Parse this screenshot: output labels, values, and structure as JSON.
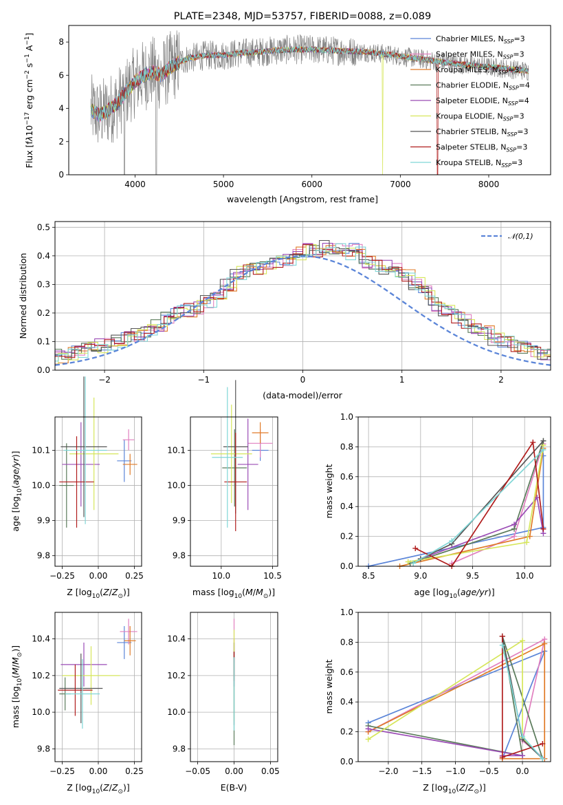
{
  "chart_data": [
    {
      "id": "spectrum",
      "type": "line",
      "title": "PLATE=2348, MJD=53757, FIBERID=0088, z=0.089",
      "xlabel": "wavelength [Angstrom, rest frame]",
      "ylabel": "Flux [f_λ 10^-17 erg cm^-2 s^-1 A^-1]",
      "xlim": [
        3250,
        8700
      ],
      "ylim": [
        0,
        9
      ],
      "xticks": [
        4000,
        5000,
        6000,
        7000,
        8000
      ],
      "yticks": [
        0,
        2,
        4,
        6,
        8
      ],
      "grid": false,
      "legend_position": "top-right",
      "data_wavelength_range": [
        3500,
        8450
      ],
      "data_color": "#808080",
      "continuum_points": [
        [
          3500,
          3.9
        ],
        [
          3600,
          3.6
        ],
        [
          3700,
          3.9
        ],
        [
          3800,
          4.3
        ],
        [
          3900,
          5.0
        ],
        [
          4000,
          5.6
        ],
        [
          4100,
          6.0
        ],
        [
          4200,
          6.2
        ],
        [
          4300,
          6.0
        ],
        [
          4400,
          6.5
        ],
        [
          4500,
          6.8
        ],
        [
          4600,
          7.0
        ],
        [
          4700,
          7.1
        ],
        [
          4800,
          7.2
        ],
        [
          4900,
          7.2
        ],
        [
          5000,
          7.2
        ],
        [
          5200,
          7.35
        ],
        [
          5400,
          7.4
        ],
        [
          5600,
          7.5
        ],
        [
          5800,
          7.55
        ],
        [
          6000,
          7.55
        ],
        [
          6200,
          7.5
        ],
        [
          6400,
          7.45
        ],
        [
          6600,
          7.4
        ],
        [
          6800,
          7.3
        ],
        [
          7000,
          7.15
        ],
        [
          7200,
          7.0
        ],
        [
          7400,
          6.85
        ],
        [
          7600,
          6.7
        ],
        [
          7800,
          6.6
        ],
        [
          8000,
          6.5
        ],
        [
          8200,
          6.4
        ],
        [
          8450,
          6.25
        ]
      ],
      "series": [
        {
          "name": "Chabrier MILES, N_SSP=3",
          "color": "#5b85d8"
        },
        {
          "name": "Salpeter MILES, N_SSP=3",
          "color": "#e17fbf"
        },
        {
          "name": "Kroupa MILES, N_SSP=3",
          "color": "#e07b27"
        },
        {
          "name": "Chabrier ELODIE, N_SSP=4",
          "color": "#5a7a5a"
        },
        {
          "name": "Salpeter ELODIE, N_SSP=4",
          "color": "#9a4bb5"
        },
        {
          "name": "Kroupa ELODIE, N_SSP=3",
          "color": "#d6e65a"
        },
        {
          "name": "Chabrier STELIB, N_SSP=3",
          "color": "#555555"
        },
        {
          "name": "Salpeter STELIB, N_SSP=3",
          "color": "#b01c1c"
        },
        {
          "name": "Kroupa STELIB, N_SSP=3",
          "color": "#7fd6d6"
        }
      ]
    },
    {
      "id": "residuals",
      "type": "histogram",
      "xlabel": "(data-model)/error",
      "ylabel": "Normed distribution",
      "xlim": [
        -2.5,
        2.5
      ],
      "ylim": [
        0,
        0.52
      ],
      "xticks": [
        -2,
        -1,
        0,
        1,
        2
      ],
      "yticks": [
        0.0,
        0.1,
        0.2,
        0.3,
        0.4,
        0.5
      ],
      "grid": true,
      "legend_position": "top-right",
      "gaussian_label": "𝒩(0,1)",
      "gaussian_color": "#5b85d8",
      "bin_width": 0.1,
      "base_values": [
        0.03,
        0.03,
        0.035,
        0.04,
        0.05,
        0.055,
        0.065,
        0.075,
        0.085,
        0.095,
        0.1,
        0.115,
        0.125,
        0.14,
        0.16,
        0.18,
        0.2,
        0.21,
        0.22,
        0.24,
        0.27,
        0.3,
        0.34,
        0.35,
        0.36,
        0.37,
        0.38,
        0.39,
        0.41,
        0.42,
        0.42,
        0.43,
        0.42,
        0.41,
        0.42,
        0.38,
        0.37,
        0.36,
        0.35,
        0.33,
        0.3,
        0.27,
        0.23,
        0.21,
        0.19,
        0.17,
        0.15,
        0.13,
        0.11,
        0.1,
        0.09,
        0.08,
        0.07,
        0.06,
        0.05,
        0.04,
        0.035,
        0.03
      ]
    },
    {
      "id": "age_vs_Z",
      "type": "errorbar",
      "xlabel": "Z [log10(Z/Z⊙)]",
      "ylabel": "age [log10(age/yr)]",
      "xlim": [
        -0.3,
        0.3
      ],
      "ylim": [
        9.77,
        10.195
      ],
      "xticks": [
        -0.25,
        0.0,
        0.25
      ],
      "yticks": [
        9.8,
        9.9,
        10.0,
        10.1
      ],
      "grid": true,
      "points": [
        {
          "x": 0.18,
          "y": 10.07,
          "xerr": 0.05,
          "yerr": 0.06,
          "color": "#5b85d8"
        },
        {
          "x": 0.21,
          "y": 10.13,
          "xerr": 0.04,
          "yerr": 0.03,
          "color": "#e17fbf"
        },
        {
          "x": 0.22,
          "y": 10.06,
          "xerr": 0.05,
          "yerr": 0.03,
          "color": "#e07b27"
        },
        {
          "x": -0.22,
          "y": 10.0,
          "xerr": 0.05,
          "yerr": 0.12,
          "color": "#5a7a5a"
        },
        {
          "x": -0.12,
          "y": 10.06,
          "xerr": 0.13,
          "yerr": 0.12,
          "color": "#9a4bb5"
        },
        {
          "x": -0.03,
          "y": 10.09,
          "xerr": 0.17,
          "yerr": 0.16,
          "color": "#d6e65a"
        },
        {
          "x": -0.1,
          "y": 10.11,
          "xerr": 0.16,
          "yerr": 0.2,
          "color": "#555555"
        },
        {
          "x": -0.15,
          "y": 10.01,
          "xerr": 0.12,
          "yerr": 0.13,
          "color": "#b01c1c"
        },
        {
          "x": -0.09,
          "y": 10.1,
          "xerr": 0.15,
          "yerr": 0.21,
          "color": "#7fd6d6"
        }
      ]
    },
    {
      "id": "age_vs_mass",
      "type": "errorbar",
      "xlabel": "mass [log10(M/M⊙)]",
      "ylabel": "",
      "xlim": [
        9.7,
        10.55
      ],
      "ylim": [
        9.77,
        10.195
      ],
      "xticks": [
        10.0,
        10.5
      ],
      "yticks": [
        9.8,
        9.9,
        10.0,
        10.1
      ],
      "grid": true,
      "points": [
        {
          "x": 10.38,
          "y": 10.1,
          "xerr": 0.08,
          "yerr": 0.03,
          "color": "#5b85d8"
        },
        {
          "x": 10.38,
          "y": 10.12,
          "xerr": 0.12,
          "yerr": 0.04,
          "color": "#e17fbf"
        },
        {
          "x": 10.38,
          "y": 10.15,
          "xerr": 0.08,
          "yerr": 0.03,
          "color": "#e07b27"
        },
        {
          "x": 10.13,
          "y": 10.05,
          "xerr": 0.12,
          "yerr": 0.11,
          "color": "#5a7a5a"
        },
        {
          "x": 10.26,
          "y": 10.06,
          "xerr": 0.1,
          "yerr": 0.13,
          "color": "#9a4bb5"
        },
        {
          "x": 10.1,
          "y": 10.09,
          "xerr": 0.2,
          "yerr": 0.14,
          "color": "#d6e65a"
        },
        {
          "x": 10.14,
          "y": 10.11,
          "xerr": 0.12,
          "yerr": 0.19,
          "color": "#555555"
        },
        {
          "x": 10.14,
          "y": 10.01,
          "xerr": 0.11,
          "yerr": 0.14,
          "color": "#b01c1c"
        },
        {
          "x": 10.06,
          "y": 10.08,
          "xerr": 0.15,
          "yerr": 0.2,
          "color": "#7fd6d6"
        }
      ]
    },
    {
      "id": "weight_vs_age",
      "type": "line",
      "xlabel": "age [log10(age/yr)]",
      "ylabel": "mass weight",
      "xlim": [
        8.4,
        10.25
      ],
      "ylim": [
        0,
        1.0
      ],
      "xticks": [
        8.5,
        9.0,
        9.5,
        10.0
      ],
      "yticks": [
        0.0,
        0.2,
        0.4,
        0.6,
        0.8,
        1.0
      ],
      "grid": true,
      "series": [
        {
          "color": "#5b85d8",
          "x": [
            8.5,
            10.18,
            10.18
          ],
          "y": [
            0.0,
            0.26,
            0.74
          ]
        },
        {
          "color": "#e17fbf",
          "x": [
            9.3,
            9.9,
            10.18
          ],
          "y": [
            0.02,
            0.2,
            0.82
          ]
        },
        {
          "color": "#e07b27",
          "x": [
            8.8,
            10.05,
            10.18
          ],
          "y": [
            0.0,
            0.2,
            0.79
          ]
        },
        {
          "color": "#5a7a5a",
          "x": [
            8.9,
            9.9,
            10.18
          ],
          "y": [
            0.02,
            0.25,
            0.84
          ]
        },
        {
          "color": "#9a4bb5",
          "x": [
            9.0,
            9.9,
            10.12,
            10.18
          ],
          "y": [
            0.05,
            0.28,
            0.46,
            0.22
          ]
        },
        {
          "color": "#d6e65a",
          "x": [
            8.88,
            10.02,
            10.18
          ],
          "y": [
            0.03,
            0.16,
            0.81
          ]
        },
        {
          "color": "#555555",
          "x": [
            9.0,
            9.3,
            10.18
          ],
          "y": [
            0.05,
            0.15,
            0.84
          ]
        },
        {
          "color": "#b01c1c",
          "x": [
            8.95,
            9.3,
            10.08,
            10.18
          ],
          "y": [
            0.12,
            0.0,
            0.83,
            0.25
          ]
        },
        {
          "color": "#7fd6d6",
          "x": [
            8.93,
            9.3,
            10.18
          ],
          "y": [
            0.02,
            0.17,
            0.78
          ]
        }
      ]
    },
    {
      "id": "mass_vs_Z",
      "type": "errorbar",
      "xlabel": "Z [log10(Z/Z⊙)]",
      "ylabel": "mass [log10(M/M⊙)]",
      "xlim": [
        -0.3,
        0.3
      ],
      "ylim": [
        9.73,
        10.545
      ],
      "xticks": [
        -0.25,
        0.0,
        0.25
      ],
      "yticks": [
        9.8,
        10.0,
        10.2,
        10.4
      ],
      "grid": true,
      "points": [
        {
          "x": 0.18,
          "y": 10.38,
          "xerr": 0.05,
          "yerr": 0.09,
          "color": "#5b85d8"
        },
        {
          "x": 0.21,
          "y": 10.44,
          "xerr": 0.06,
          "yerr": 0.07,
          "color": "#e17fbf"
        },
        {
          "x": 0.22,
          "y": 10.39,
          "xerr": 0.04,
          "yerr": 0.08,
          "color": "#e07b27"
        },
        {
          "x": -0.23,
          "y": 10.1,
          "xerr": 0.04,
          "yerr": 0.09,
          "color": "#5a7a5a"
        },
        {
          "x": -0.1,
          "y": 10.26,
          "xerr": 0.16,
          "yerr": 0.12,
          "color": "#9a4bb5"
        },
        {
          "x": -0.05,
          "y": 10.2,
          "xerr": 0.2,
          "yerr": 0.16,
          "color": "#d6e65a"
        },
        {
          "x": -0.12,
          "y": 10.13,
          "xerr": 0.15,
          "yerr": 0.19,
          "color": "#555555"
        },
        {
          "x": -0.16,
          "y": 10.12,
          "xerr": 0.12,
          "yerr": 0.14,
          "color": "#b01c1c"
        },
        {
          "x": -0.11,
          "y": 10.1,
          "xerr": 0.12,
          "yerr": 0.19,
          "color": "#7fd6d6"
        }
      ]
    },
    {
      "id": "mass_vs_ebv",
      "type": "errorbar",
      "xlabel": "E(B-V)",
      "ylabel": "",
      "xlim": [
        -0.06,
        0.06
      ],
      "ylim": [
        9.73,
        10.545
      ],
      "xticks": [
        -0.05,
        0.0,
        0.05
      ],
      "yticks": [
        9.8,
        10.0,
        10.2,
        10.4
      ],
      "grid": true,
      "points": [
        {
          "x": 0.0,
          "y": 10.26,
          "xerr": 0.0,
          "yerr": 0.12,
          "color": "#5b85d8"
        },
        {
          "x": 0.0,
          "y": 10.39,
          "xerr": 0.0,
          "yerr": 0.12,
          "color": "#e17fbf"
        },
        {
          "x": 0.0,
          "y": 10.3,
          "xerr": 0.0,
          "yerr": 0.1,
          "color": "#e07b27"
        },
        {
          "x": 0.0,
          "y": 10.1,
          "xerr": 0.0,
          "yerr": 0.28,
          "color": "#5a7a5a"
        },
        {
          "x": 0.0,
          "y": 10.26,
          "xerr": 0.0,
          "yerr": 0.12,
          "color": "#9a4bb5"
        },
        {
          "x": 0.0,
          "y": 10.2,
          "xerr": 0.0,
          "yerr": 0.25,
          "color": "#d6e65a"
        },
        {
          "x": 0.0,
          "y": 10.13,
          "xerr": 0.0,
          "yerr": 0.2,
          "color": "#555555"
        },
        {
          "x": 0.0,
          "y": 10.25,
          "xerr": 0.0,
          "yerr": 0.08,
          "color": "#b01c1c"
        },
        {
          "x": 0.0,
          "y": 10.1,
          "xerr": 0.0,
          "yerr": 0.2,
          "color": "#7fd6d6"
        }
      ]
    },
    {
      "id": "weight_vs_Z",
      "type": "line",
      "xlabel": "Z [log10(Z/Z⊙)]",
      "ylabel": "mass weight",
      "xlim": [
        -2.45,
        0.42
      ],
      "ylim": [
        0,
        1.0
      ],
      "xticks": [
        -2.0,
        -1.5,
        -1.0,
        -0.5,
        0.0
      ],
      "yticks": [
        0.0,
        0.2,
        0.4,
        0.6,
        0.8,
        1.0
      ],
      "grid": true,
      "series": [
        {
          "color": "#5b85d8",
          "x": [
            -2.3,
            0.33,
            -0.3
          ],
          "y": [
            0.26,
            0.74,
            0.02
          ]
        },
        {
          "color": "#e17fbf",
          "x": [
            -2.3,
            0.33,
            0.0,
            0.33
          ],
          "y": [
            0.2,
            0.82,
            0.14,
            0.02
          ]
        },
        {
          "color": "#e07b27",
          "x": [
            -2.3,
            0.33,
            0.33,
            -0.3
          ],
          "y": [
            0.2,
            0.79,
            0.02,
            0.02
          ]
        },
        {
          "color": "#5a7a5a",
          "x": [
            -2.3,
            0.0,
            -0.3,
            0.3
          ],
          "y": [
            0.24,
            0.04,
            0.84,
            0.02
          ]
        },
        {
          "color": "#9a4bb5",
          "x": [
            -2.3,
            0.0,
            -0.3
          ],
          "y": [
            0.22,
            0.04,
            0.04
          ]
        },
        {
          "color": "#d6e65a",
          "x": [
            -2.3,
            0.0,
            0.0,
            0.3
          ],
          "y": [
            0.15,
            0.81,
            0.16,
            0.02
          ]
        },
        {
          "color": "#555555",
          "x": [
            -0.3,
            0.0,
            0.3
          ],
          "y": [
            0.84,
            0.15,
            0.02
          ]
        },
        {
          "color": "#b01c1c",
          "x": [
            -0.3,
            -0.3,
            0.3
          ],
          "y": [
            0.84,
            0.03,
            0.12
          ]
        },
        {
          "color": "#7fd6d6",
          "x": [
            -0.3,
            0.0,
            0.3
          ],
          "y": [
            0.78,
            0.17,
            0.02
          ]
        }
      ]
    }
  ]
}
